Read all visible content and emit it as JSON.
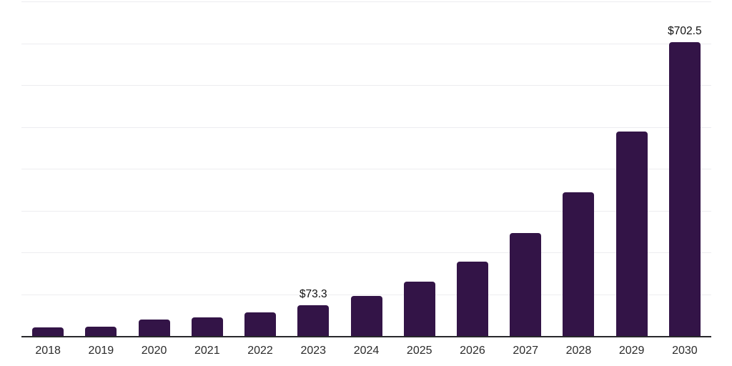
{
  "chart_data": {
    "type": "bar",
    "title": "",
    "xlabel": "",
    "ylabel": "",
    "categories": [
      "2018",
      "2019",
      "2020",
      "2021",
      "2022",
      "2023",
      "2024",
      "2025",
      "2026",
      "2027",
      "2028",
      "2029",
      "2030"
    ],
    "values": [
      20.0,
      22.8,
      39.9,
      44.5,
      56.0,
      73.3,
      95.4,
      130.2,
      177.0,
      246.7,
      343.8,
      489.4,
      702.5
    ],
    "value_labels": [
      "",
      "",
      "",
      "",
      "",
      "$73.3",
      "",
      "",
      "",
      "",
      "",
      "",
      "$702.5"
    ],
    "ylim": [
      0,
      800
    ],
    "gridline_step": 100,
    "grid": true,
    "legend": "none",
    "bar_color": "#331447",
    "axis_color": "#28282b",
    "gridline_color": "#ededf0",
    "x_label_color": "#2b2b2b",
    "value_label_color": "#111111",
    "background_color": "#ffffff"
  }
}
